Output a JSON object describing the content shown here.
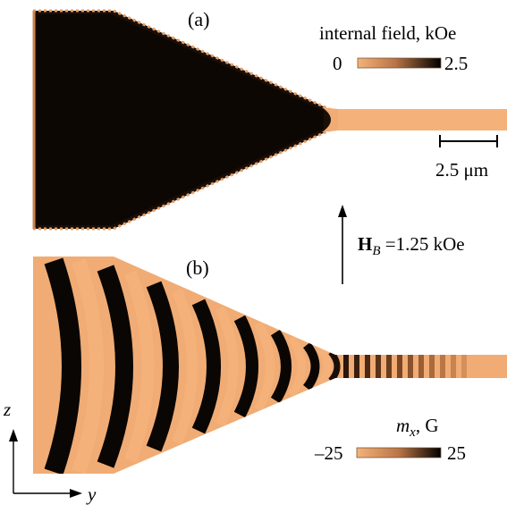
{
  "panel_a": {
    "label": "(a)",
    "colorbar": {
      "title": "internal field, kOe",
      "min_label": "0",
      "max_label": "2.5"
    },
    "scale_bar_label": "2.5 μm"
  },
  "panel_b": {
    "label": "(b)",
    "colorbar": {
      "title_symbol": "m",
      "title_subscript": "x",
      "title_unit": ", G",
      "min_label": "–25",
      "max_label": "25"
    }
  },
  "bias_field": {
    "symbol": "H",
    "subscript": "B",
    "value_text": " =1.25 kOe"
  },
  "axes": {
    "vertical": "z",
    "horizontal": "y"
  },
  "colors": {
    "light": "#f4b27a",
    "mid": "#c9834f",
    "dark": "#0a0604",
    "accent": "#e6a066"
  },
  "icons": {
    "field_arrow": "arrow-up-icon",
    "axis_z": "arrow-up-icon",
    "axis_y": "arrow-right-icon"
  }
}
